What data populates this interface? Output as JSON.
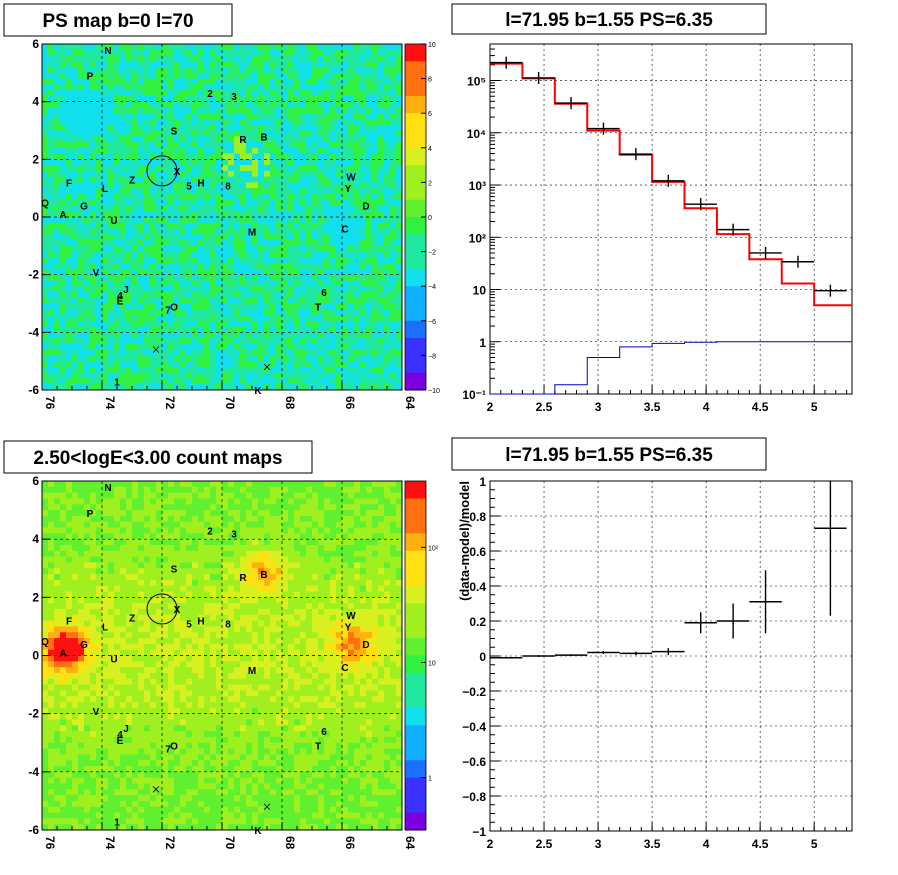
{
  "chart_data": [
    {
      "type": "heatmap",
      "title": "PS map b=0 l=70",
      "x_range": [
        76,
        64
      ],
      "y_range": [
        -6,
        6
      ],
      "x_ticks": [
        "76",
        "74",
        "72",
        "70",
        "68",
        "66",
        "64"
      ],
      "y_ticks": [
        "-6",
        "-4",
        "-2",
        "0",
        "2",
        "4",
        "6"
      ],
      "z_range": [
        -10,
        10
      ],
      "z_ticks": [
        "10",
        "8",
        "6",
        "4",
        "2",
        "0",
        "−2",
        "−4",
        "−6",
        "−8",
        "−10"
      ],
      "grid": true,
      "colors": {
        "base": "#33ee55",
        "palette": [
          "#7a00e0",
          "#3a30ff",
          "#1a70ff",
          "#10b0ff",
          "#10e0ee",
          "#20e8a0",
          "#30f040",
          "#a0f020",
          "#ffe010",
          "#ffb010",
          "#ff7010",
          "#ff1010"
        ]
      },
      "source_labels": [
        "N",
        "P",
        "2",
        "3",
        "S",
        "R",
        "B",
        "X",
        "5",
        "H",
        "8",
        "Z",
        "F",
        "L",
        "G",
        "Q",
        "A",
        "U",
        "W",
        "Y",
        "D",
        "C",
        "M",
        "V",
        "4",
        "J",
        "E",
        "7",
        "O",
        "6",
        "T",
        "1",
        "K"
      ],
      "circle": {
        "l": 72,
        "b": 1.6
      },
      "crosses": [
        {
          "l": 72.2,
          "b": -4.6
        },
        {
          "l": 68.5,
          "b": -5.2
        }
      ]
    },
    {
      "type": "line",
      "title": "l=71.95 b=1.55 PS=6.35",
      "x_range": [
        2,
        5.35
      ],
      "x_ticks": [
        "2",
        "2.5",
        "3",
        "3.5",
        "4",
        "4.5",
        "5"
      ],
      "y_scale": "log",
      "y_range": [
        0.1,
        500000
      ],
      "y_ticks": [
        "10⁵",
        "10⁴",
        "10³",
        "10²",
        "10",
        "1",
        "10⁻¹"
      ],
      "grid": true,
      "series": [
        {
          "color": "#ff0000",
          "bins": [
            2.0,
            2.3,
            2.6,
            2.9,
            3.2,
            3.5,
            3.8,
            4.1,
            4.4,
            4.7,
            5.0,
            5.35
          ],
          "values": [
            210000,
            110000,
            36000,
            11000,
            3800,
            1150,
            360,
            115,
            38,
            13,
            5
          ]
        },
        {
          "color": "#000000",
          "points": [
            [
              2.15,
              220000
            ],
            [
              2.45,
              112000
            ],
            [
              2.75,
              37000
            ],
            [
              3.05,
              12000
            ],
            [
              3.35,
              3900
            ],
            [
              3.65,
              1200
            ],
            [
              3.95,
              430
            ],
            [
              4.25,
              140
            ],
            [
              4.55,
              50
            ],
            [
              4.85,
              34
            ],
            [
              5.15,
              9.5
            ]
          ]
        },
        {
          "color": "#0000cc",
          "bins": [
            2.0,
            2.3,
            2.6,
            2.9,
            3.2,
            3.5,
            3.8,
            4.1,
            4.4,
            4.7,
            5.0,
            5.35
          ],
          "values": [
            0.1,
            0.1,
            0.15,
            0.5,
            0.8,
            0.93,
            0.98,
            1,
            1,
            1,
            1
          ]
        }
      ]
    },
    {
      "type": "heatmap",
      "title": "2.50<logE<3.00 count maps",
      "x_range": [
        76,
        64
      ],
      "y_range": [
        -6,
        6
      ],
      "x_ticks": [
        "76",
        "74",
        "72",
        "70",
        "68",
        "66",
        "64"
      ],
      "y_ticks": [
        "-6",
        "-4",
        "-2",
        "0",
        "2",
        "4",
        "6"
      ],
      "z_scale": "log",
      "z_ticks": [
        "10²",
        "10",
        "1"
      ],
      "grid": true,
      "colors": {
        "base": "#ccee44",
        "palette": [
          "#7a00e0",
          "#3a30ff",
          "#1a70ff",
          "#10b0ff",
          "#10e0ee",
          "#20e8a0",
          "#30f040",
          "#a0f020",
          "#ffe010",
          "#ffb010",
          "#ff7010",
          "#ff1010"
        ]
      },
      "hot_spots": [
        {
          "l": 75.2,
          "b": 0.2,
          "level": "high"
        },
        {
          "l": 65.6,
          "b": 0.4,
          "level": "medium"
        },
        {
          "l": 68.6,
          "b": 2.9,
          "level": "medium"
        }
      ],
      "source_labels": [
        "N",
        "P",
        "2",
        "3",
        "S",
        "R",
        "B",
        "X",
        "5",
        "H",
        "8",
        "Z",
        "F",
        "L",
        "G",
        "Q",
        "A",
        "U",
        "W",
        "Y",
        "D",
        "C",
        "M",
        "V",
        "4",
        "J",
        "E",
        "7",
        "O",
        "6",
        "T",
        "1",
        "K"
      ],
      "circle": {
        "l": 72,
        "b": 1.6
      },
      "crosses": [
        {
          "l": 72.2,
          "b": -4.6
        },
        {
          "l": 68.5,
          "b": -5.2
        }
      ]
    },
    {
      "type": "scatter",
      "title": "l=71.95 b=1.55 PS=6.35",
      "ylabel": "(data-model)/model",
      "x_range": [
        2,
        5.35
      ],
      "y_range": [
        -1,
        1
      ],
      "x_ticks": [
        "2",
        "2.5",
        "3",
        "3.5",
        "4",
        "4.5",
        "5"
      ],
      "y_ticks": [
        "1",
        "0.8",
        "0.6",
        "0.4",
        "0.2",
        "0",
        "−0.2",
        "−0.4",
        "−0.6",
        "−0.8",
        "−1"
      ],
      "grid": true,
      "points": [
        {
          "x": 2.15,
          "y": -0.01,
          "xerr": 0.15,
          "yerr": 0.005
        },
        {
          "x": 2.45,
          "y": 0.0,
          "xerr": 0.15,
          "yerr": 0.005
        },
        {
          "x": 2.75,
          "y": 0.005,
          "xerr": 0.15,
          "yerr": 0.005
        },
        {
          "x": 3.05,
          "y": 0.02,
          "xerr": 0.15,
          "yerr": 0.008
        },
        {
          "x": 3.35,
          "y": 0.015,
          "xerr": 0.15,
          "yerr": 0.01
        },
        {
          "x": 3.65,
          "y": 0.025,
          "xerr": 0.15,
          "yerr": 0.02
        },
        {
          "x": 3.95,
          "y": 0.19,
          "xerr": 0.15,
          "yerr": 0.06
        },
        {
          "x": 4.25,
          "y": 0.2,
          "xerr": 0.15,
          "yerr": 0.1
        },
        {
          "x": 4.55,
          "y": 0.31,
          "xerr": 0.15,
          "yerr": 0.18
        },
        {
          "x": 5.15,
          "y": 0.73,
          "xerr": 0.15,
          "yerr": 0.5
        }
      ]
    }
  ]
}
